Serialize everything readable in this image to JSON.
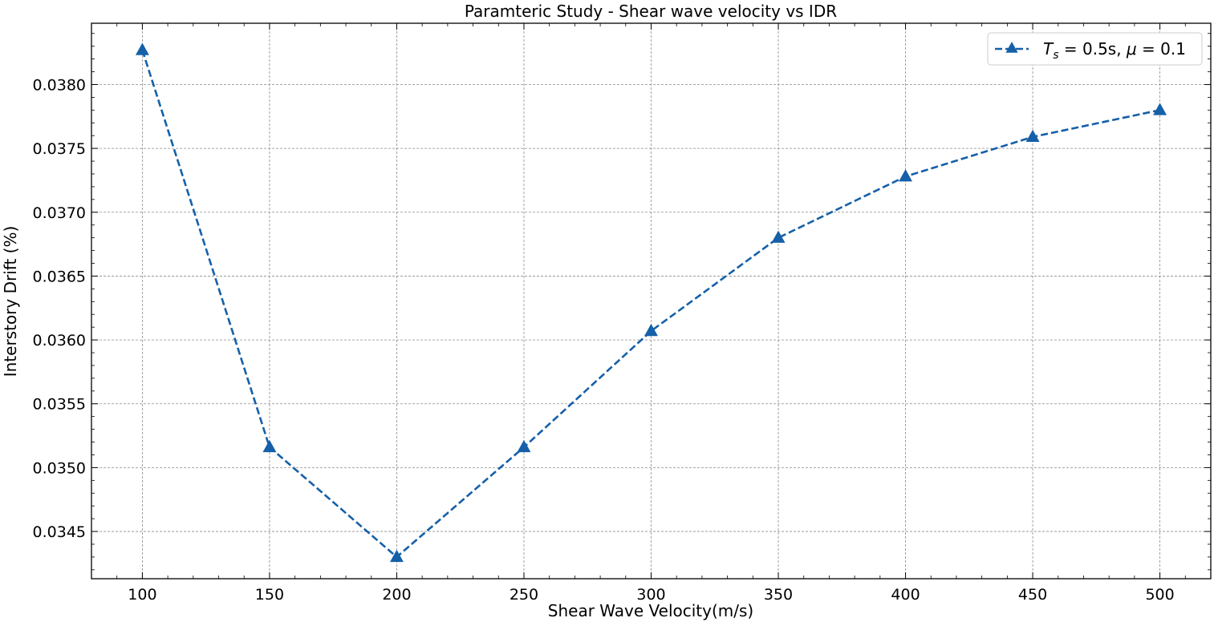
{
  "chart_data": {
    "type": "line",
    "title": "Paramteric Study - Shear wave velocity vs IDR",
    "xlabel": "Shear Wave Velocity(m/s)",
    "ylabel": "Interstory Drift (%)",
    "xlim": [
      80,
      520
    ],
    "ylim": [
      0.03413,
      0.03848
    ],
    "x_ticks": [
      "100",
      "150",
      "200",
      "250",
      "300",
      "350",
      "400",
      "450",
      "500"
    ],
    "y_ticks": [
      "0.0345",
      "0.0350",
      "0.0355",
      "0.0360",
      "0.0365",
      "0.0370",
      "0.0375",
      "0.0380"
    ],
    "x_tick_values": [
      100,
      150,
      200,
      250,
      300,
      350,
      400,
      450,
      500
    ],
    "y_tick_values": [
      0.0345,
      0.035,
      0.0355,
      0.036,
      0.0365,
      0.037,
      0.0375,
      0.038
    ],
    "grid": true,
    "legend_position": "top-right",
    "series": [
      {
        "name": "T_s = 0.5s, μ = 0.1",
        "color": "#1560a8",
        "line_style": "dashed",
        "marker": "triangle",
        "x": [
          100,
          150,
          200,
          250,
          300,
          350,
          400,
          450,
          500
        ],
        "y": [
          0.03827,
          0.03516,
          0.0343,
          0.03516,
          0.03607,
          0.0368,
          0.03728,
          0.03759,
          0.0378
        ]
      }
    ]
  }
}
